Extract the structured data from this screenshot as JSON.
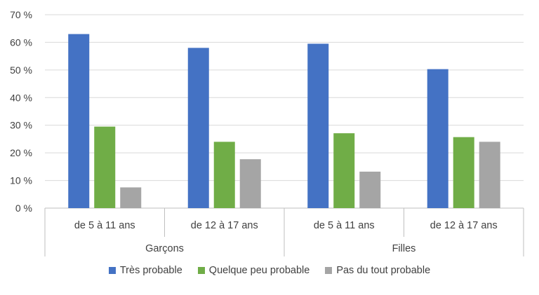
{
  "chart_data": {
    "type": "bar",
    "groups": [
      {
        "label": "Garçons",
        "categories": [
          "de 5 à 11 ans",
          "de 12 à 17 ans"
        ]
      },
      {
        "label": "Filles",
        "categories": [
          "de 5 à 11 ans",
          "de 12 à 17 ans"
        ]
      }
    ],
    "categories": [
      "de 5 à 11 ans",
      "de 12 à 17 ans",
      "de 5 à 11 ans",
      "de 12 à 17 ans"
    ],
    "series": [
      {
        "name": "Très probable",
        "color": "#4472C4",
        "values": [
          63,
          58,
          59.5,
          50.3
        ]
      },
      {
        "name": "Quelque peu probable",
        "color": "#70AD47",
        "values": [
          29.5,
          24,
          27.1,
          25.7
        ]
      },
      {
        "name": "Pas du tout probable",
        "color": "#A5A5A5",
        "values": [
          7.5,
          17.7,
          13.2,
          24
        ]
      }
    ],
    "ylim": [
      0,
      70
    ],
    "yticks": [
      "0 %",
      "10 %",
      "20 %",
      "30 %",
      "40 %",
      "50 %",
      "60 %",
      "70 %"
    ],
    "grid": true,
    "legend_position": "bottom"
  }
}
